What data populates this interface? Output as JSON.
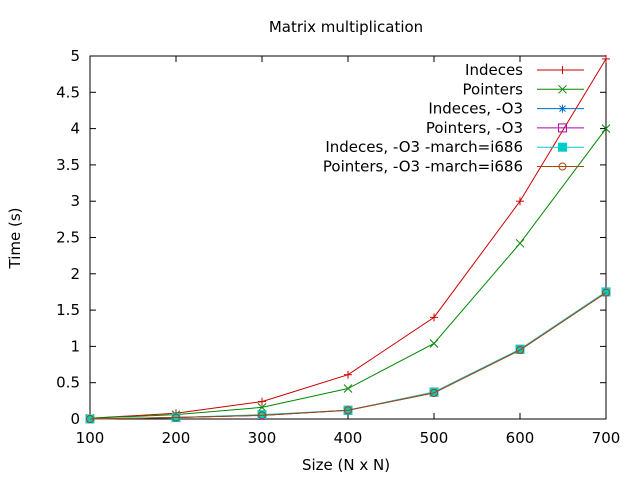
{
  "chart_data": {
    "type": "line",
    "title": "Matrix multiplication",
    "xlabel": "Size (N x N)",
    "ylabel": "Time (s)",
    "xlim": [
      100,
      700
    ],
    "ylim": [
      0,
      5
    ],
    "x_ticks": [
      100,
      200,
      300,
      400,
      500,
      600,
      700
    ],
    "y_ticks": [
      0,
      0.5,
      1,
      1.5,
      2,
      2.5,
      3,
      3.5,
      4,
      4.5,
      5
    ],
    "x_tick_labels": [
      "100",
      "200",
      "300",
      "400",
      "500",
      "600",
      "700"
    ],
    "y_tick_labels": [
      "0",
      "0.5",
      "1",
      "1.5",
      "2",
      "2.5",
      "3",
      "3.5",
      "4",
      "4.5",
      "5"
    ],
    "legend_position": "top-right",
    "grid": false,
    "x": [
      100,
      200,
      300,
      400,
      500,
      600,
      700
    ],
    "series": [
      {
        "name": "Indeces",
        "color": "#cc0000",
        "marker": "plus",
        "values": [
          0.01,
          0.08,
          0.24,
          0.61,
          1.4,
          3.0,
          4.96
        ]
      },
      {
        "name": "Pointers",
        "color": "#008800",
        "marker": "cross",
        "values": [
          0.01,
          0.06,
          0.16,
          0.42,
          1.04,
          2.42,
          4.0
        ]
      },
      {
        "name": "Indeces, -O3",
        "color": "#0070c8",
        "marker": "star",
        "values": [
          0.0,
          0.02,
          0.05,
          0.12,
          0.36,
          0.95,
          1.74
        ]
      },
      {
        "name": "Pointers, -O3",
        "color": "#b000b0",
        "marker": "square",
        "values": [
          0.0,
          0.02,
          0.05,
          0.12,
          0.37,
          0.96,
          1.75
        ]
      },
      {
        "name": "Indeces, -O3 -march=i686",
        "color": "#00cccc",
        "marker": "filled-square",
        "values": [
          0.0,
          0.02,
          0.06,
          0.12,
          0.37,
          0.96,
          1.75
        ]
      },
      {
        "name": "Pointers, -O3 -march=i686",
        "color": "#aa4400",
        "marker": "circle",
        "values": [
          0.0,
          0.02,
          0.05,
          0.12,
          0.36,
          0.95,
          1.74
        ]
      }
    ]
  }
}
